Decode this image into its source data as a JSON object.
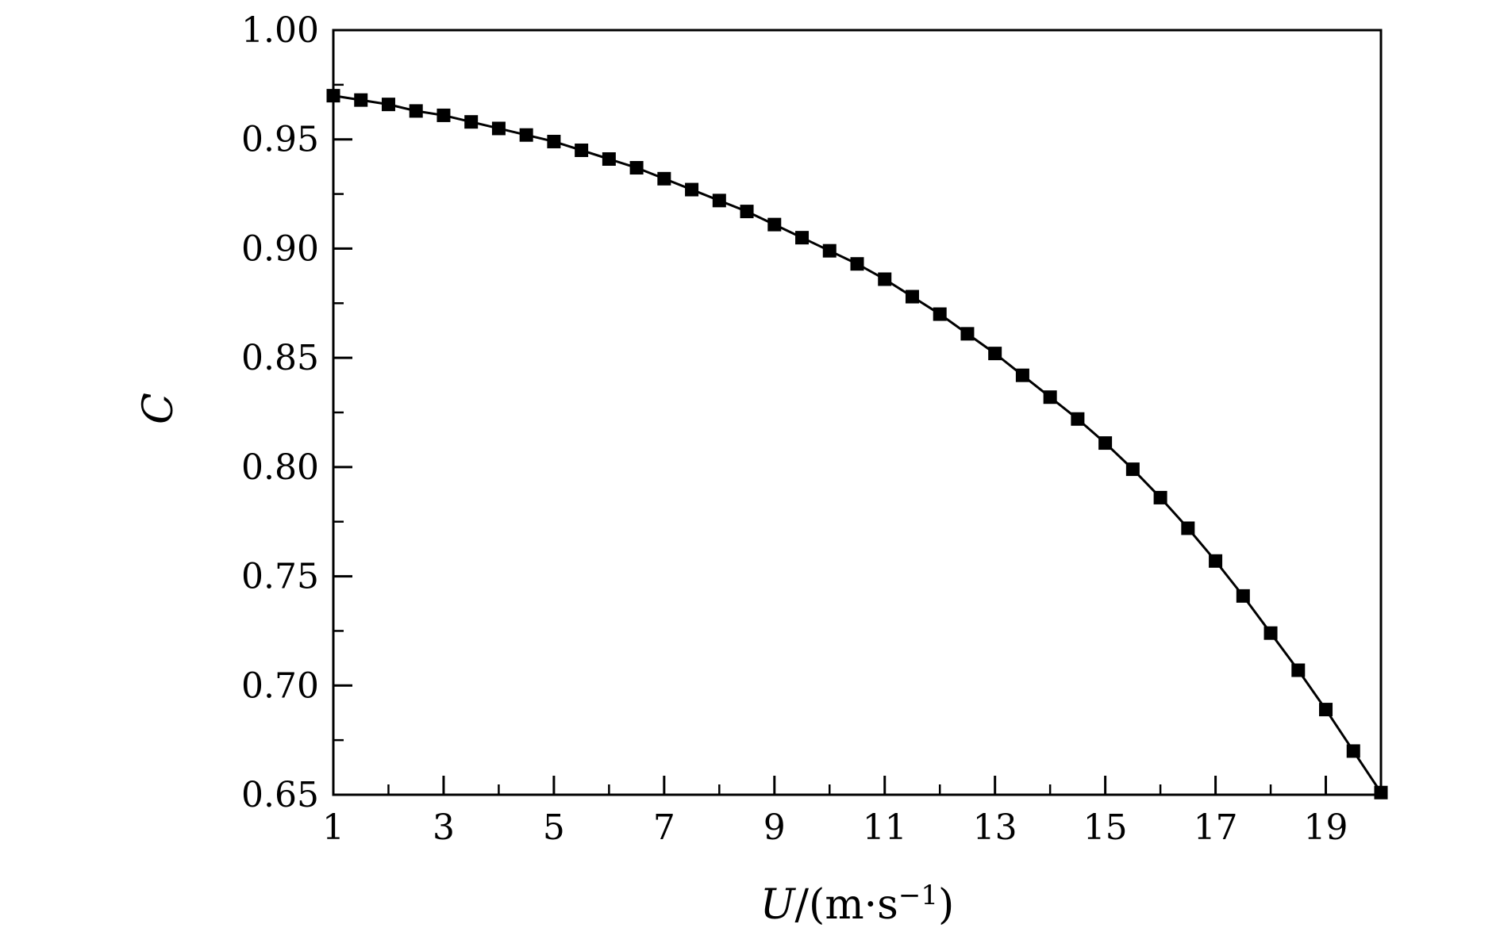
{
  "colors": {
    "background": "#ffffff",
    "axis": "#000000",
    "series": "#000000"
  },
  "chart_data": {
    "type": "line",
    "title": "",
    "xlabel": {
      "variable": "U",
      "unit_prefix": "/(m·s",
      "exponent": "−1",
      "unit_suffix": ")"
    },
    "ylabel": "C",
    "xlim": [
      1,
      20
    ],
    "ylim": [
      0.65,
      1.0
    ],
    "grid": false,
    "legend": "none",
    "xticks": {
      "major": [
        1,
        3,
        5,
        7,
        9,
        11,
        13,
        15,
        17,
        19
      ],
      "labels": [
        "1",
        "3",
        "5",
        "7",
        "9",
        "11",
        "13",
        "15",
        "17",
        "19"
      ],
      "minor": [
        2,
        4,
        6,
        8,
        10,
        12,
        14,
        16,
        18,
        20
      ]
    },
    "yticks": {
      "major": [
        0.65,
        0.7,
        0.75,
        0.8,
        0.85,
        0.9,
        0.95,
        1.0
      ],
      "labels": [
        "0.65",
        "0.70",
        "0.75",
        "0.80",
        "0.85",
        "0.90",
        "0.95",
        "1.00"
      ],
      "minor": [
        0.675,
        0.725,
        0.775,
        0.825,
        0.875,
        0.925,
        0.975
      ]
    },
    "series": [
      {
        "name": "C",
        "marker": "square",
        "marker_color": "#000000",
        "line_color": "#000000",
        "x": [
          1.0,
          1.5,
          2.0,
          2.5,
          3.0,
          3.5,
          4.0,
          4.5,
          5.0,
          5.5,
          6.0,
          6.5,
          7.0,
          7.5,
          8.0,
          8.5,
          9.0,
          9.5,
          10.0,
          10.5,
          11.0,
          11.5,
          12.0,
          12.5,
          13.0,
          13.5,
          14.0,
          14.5,
          15.0,
          15.5,
          16.0,
          16.5,
          17.0,
          17.5,
          18.0,
          18.5,
          19.0,
          19.5,
          20.0
        ],
        "y": [
          0.97,
          0.968,
          0.966,
          0.963,
          0.961,
          0.958,
          0.955,
          0.952,
          0.949,
          0.945,
          0.941,
          0.937,
          0.932,
          0.927,
          0.922,
          0.917,
          0.911,
          0.905,
          0.899,
          0.893,
          0.886,
          0.878,
          0.87,
          0.861,
          0.852,
          0.842,
          0.832,
          0.822,
          0.811,
          0.799,
          0.786,
          0.772,
          0.757,
          0.741,
          0.724,
          0.707,
          0.689,
          0.67,
          0.651
        ]
      }
    ]
  }
}
